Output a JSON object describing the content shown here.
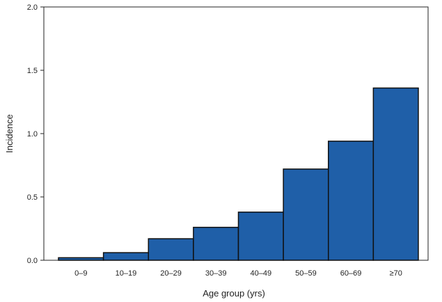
{
  "chart_data": {
    "type": "bar",
    "title": "",
    "xlabel": "Age group (yrs)",
    "ylabel": "Incidence",
    "categories": [
      "0–9",
      "10–19",
      "20–29",
      "30–39",
      "40–49",
      "50–59",
      "60–69",
      "≥70"
    ],
    "values": [
      0.02,
      0.06,
      0.17,
      0.26,
      0.38,
      0.72,
      0.94,
      1.36
    ],
    "ylim": [
      0,
      2.0
    ],
    "yticks": [
      0.0,
      0.5,
      1.0,
      1.5,
      2.0
    ],
    "ytick_labels": [
      "0.0",
      "0.5",
      "1.0",
      "1.5",
      "2.0"
    ],
    "grid": false,
    "legend": "none",
    "colors": {
      "bar_fill": "#1f5fa8",
      "bar_stroke": "#111111",
      "axis": "#222222"
    }
  }
}
